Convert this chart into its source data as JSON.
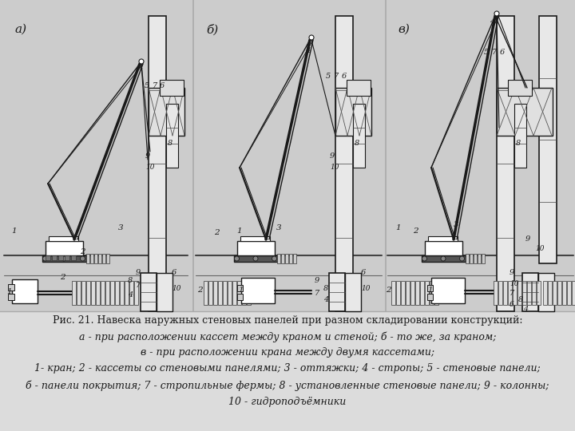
{
  "bg_color": "#d4d4d4",
  "text_bg_color": "#e2e2e2",
  "line_color": "#1a1a1a",
  "fig_width": 7.2,
  "fig_height": 5.4,
  "dpi": 100,
  "caption": [
    {
      "text": "Рис. 21. Навеска наружных стеновых панелей при разном складировании конструкций:",
      "style": "normal"
    },
    {
      "text": "а - при расположении кассет между краном и стеной; б - то же, за краном;",
      "style": "italic"
    },
    {
      "text": "в - при расположении крана между двумя кассетами;",
      "style": "italic"
    },
    {
      "text": "1- кран; 2 - кассеты со стеновыми панелями; 3 - оттяжки; 4 - стропы; 5 - стеновые панели;",
      "style": "italic"
    },
    {
      "text": "б - панели покрытия; 7 - стропильные фермы; 8 - установленные стеновые панели; 9 - колонны;",
      "style": "italic"
    },
    {
      "text": "10 - гидроподъёмники",
      "style": "italic"
    }
  ]
}
